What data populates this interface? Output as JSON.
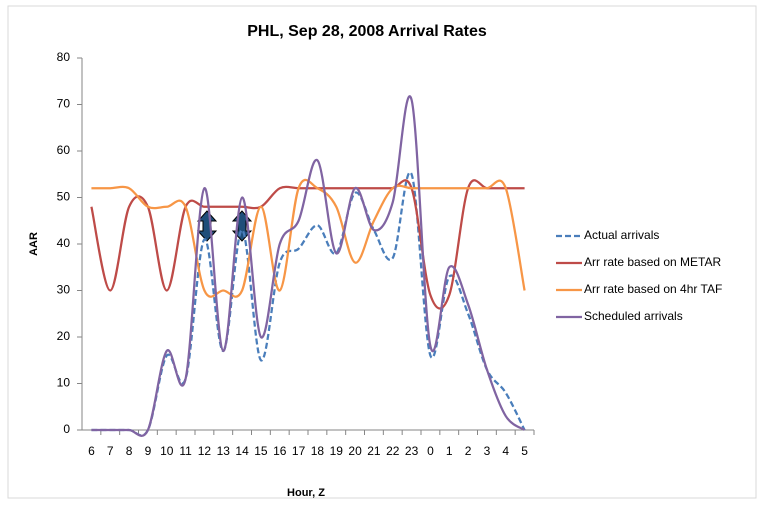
{
  "chart_data": {
    "type": "line",
    "title": "PHL, Sep 28, 2008 Arrival Rates",
    "x_label": "Hour, Z",
    "y_label": "AAR",
    "categories": [
      "6",
      "7",
      "8",
      "9",
      "10",
      "11",
      "12",
      "13",
      "14",
      "15",
      "16",
      "17",
      "18",
      "19",
      "20",
      "21",
      "22",
      "23",
      "0",
      "1",
      "2",
      "3",
      "4",
      "5"
    ],
    "series": [
      {
        "name": "Actual arrivals",
        "color": "#4a7ebb",
        "line_style": "dashed",
        "values": [
          0,
          0,
          0,
          0,
          16,
          11,
          41,
          17,
          43,
          15,
          36,
          39,
          44,
          38,
          51,
          43,
          37,
          55,
          16,
          33,
          25,
          13,
          8,
          0
        ]
      },
      {
        "name": "Arr rate based on METAR",
        "color": "#be4b48",
        "line_style": "solid",
        "values": [
          48,
          30,
          48,
          48,
          30,
          48,
          48,
          48,
          48,
          48,
          52,
          52,
          52,
          52,
          52,
          52,
          52,
          52,
          29,
          29,
          52,
          52,
          52,
          52
        ]
      },
      {
        "name": "Arr rate based on 4hr TAF",
        "color": "#f79646",
        "line_style": "solid",
        "values": [
          52,
          52,
          52,
          48,
          48,
          48,
          30,
          30,
          30,
          48,
          30,
          52,
          52,
          48,
          36,
          45,
          52,
          52,
          52,
          52,
          52,
          52,
          52,
          30
        ]
      },
      {
        "name": "Scheduled arrivals",
        "color": "#8064a2",
        "line_style": "solid",
        "values": [
          0,
          0,
          0,
          0,
          17,
          11,
          52,
          17,
          50,
          20,
          40,
          45,
          58,
          38,
          52,
          43,
          49,
          71,
          18,
          35,
          27,
          13,
          3,
          0
        ]
      }
    ],
    "ylim": [
      0,
      80
    ],
    "yticks": [
      0,
      10,
      20,
      30,
      40,
      50,
      60,
      70,
      80
    ],
    "grid": false,
    "legend": "right"
  }
}
